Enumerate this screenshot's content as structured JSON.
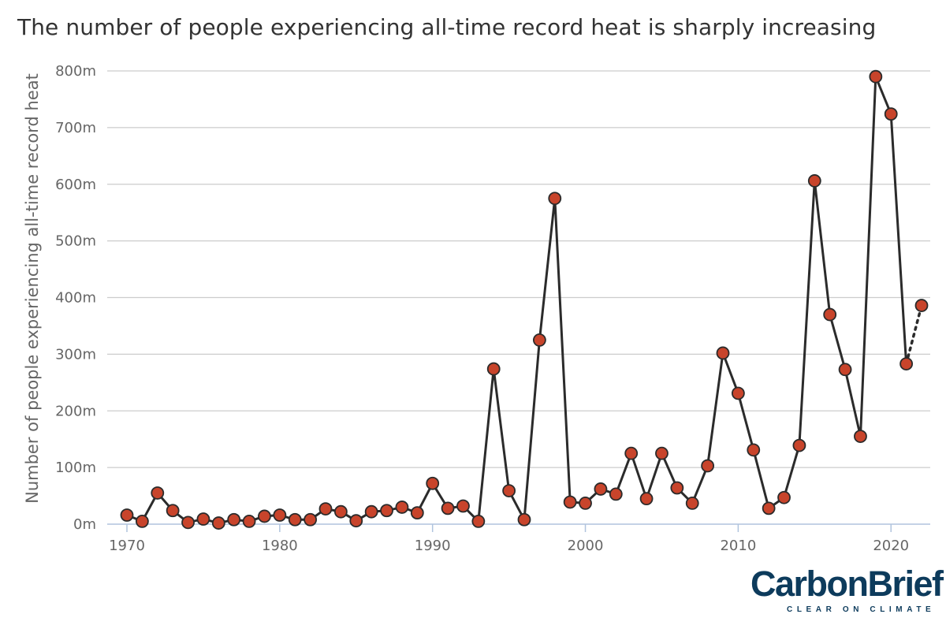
{
  "chart_data": {
    "type": "line",
    "title": "The number of people experiencing all-time record heat is sharply increasing",
    "ylabel": "Number of people experiencing all-time record heat",
    "xlabel": "",
    "xlim": [
      1970,
      2022
    ],
    "ylim": [
      0,
      800
    ],
    "x_ticks": [
      1970,
      1980,
      1990,
      2000,
      2010,
      2020
    ],
    "x_tick_labels": [
      "1970",
      "1980",
      "1990",
      "2000",
      "2010",
      "2020"
    ],
    "y_ticks": [
      0,
      100,
      200,
      300,
      400,
      500,
      600,
      700,
      800
    ],
    "y_tick_labels": [
      "0m",
      "100m",
      "200m",
      "300m",
      "400m",
      "500m",
      "600m",
      "700m",
      "800m"
    ],
    "grid": true,
    "series": [
      {
        "line_color": "#2b2b2b",
        "marker_color": "#c8442b",
        "x": [
          1970,
          1971,
          1972,
          1973,
          1974,
          1975,
          1976,
          1977,
          1978,
          1979,
          1980,
          1981,
          1982,
          1983,
          1984,
          1985,
          1986,
          1987,
          1988,
          1989,
          1990,
          1991,
          1992,
          1993,
          1994,
          1995,
          1996,
          1997,
          1998,
          1999,
          2000,
          2001,
          2002,
          2003,
          2004,
          2005,
          2006,
          2007,
          2008,
          2009,
          2010,
          2011,
          2012,
          2013,
          2014,
          2015,
          2016,
          2017,
          2018,
          2019,
          2020,
          2021,
          2022
        ],
        "y": [
          16,
          5,
          55,
          24,
          3,
          9,
          2,
          8,
          5,
          14,
          16,
          8,
          8,
          27,
          22,
          6,
          22,
          24,
          30,
          20,
          72,
          28,
          32,
          5,
          274,
          59,
          8,
          325,
          575,
          39,
          37,
          62,
          53,
          125,
          45,
          125,
          64,
          37,
          103,
          302,
          231,
          131,
          28,
          47,
          139,
          606,
          370,
          273,
          155,
          790,
          724,
          283,
          386
        ],
        "dotted_from_x": 2021
      }
    ]
  },
  "logo": {
    "name": "CarbonBrief",
    "tagline": "CLEAR ON CLIMATE"
  }
}
